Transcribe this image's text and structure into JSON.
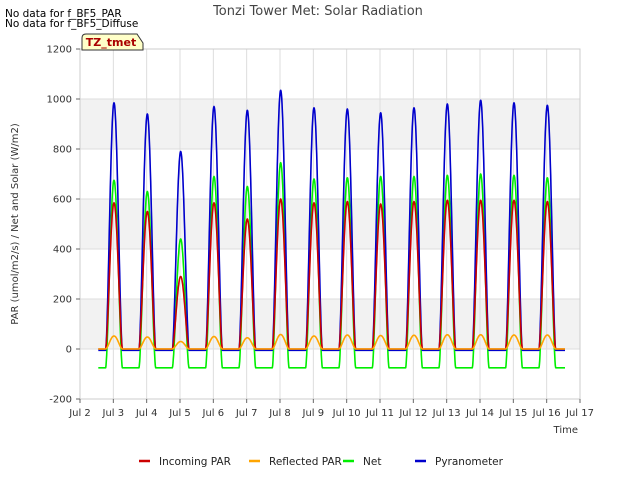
{
  "notes": [
    "No data for f_BF5_PAR",
    "No data for f_BF5_Diffuse"
  ],
  "chart_data": {
    "type": "line",
    "title": "Tonzi Tower Met: Solar Radiation",
    "xlabel": "Time",
    "ylabel": "PAR (umol/m2/s) / Net and Solar (W/m2)",
    "xlim": [
      2,
      17
    ],
    "ylim": [
      -200,
      1200
    ],
    "x_ticks": [
      2,
      3,
      4,
      5,
      6,
      7,
      8,
      9,
      10,
      11,
      12,
      13,
      14,
      15,
      16,
      17
    ],
    "x_tick_labels": [
      "Jul 2",
      "Jul 3",
      "Jul 4",
      "Jul 5",
      "Jul 6",
      "Jul 7",
      "Jul 8",
      "Jul 9",
      "Jul 10",
      "Jul 11",
      "Jul 12",
      "Jul 13",
      "Jul 14",
      "Jul 15",
      "Jul 16",
      "Jul 17"
    ],
    "y_ticks": [
      -200,
      0,
      200,
      400,
      600,
      800,
      1000,
      1200
    ],
    "y_tick_labels": [
      "-200",
      "0",
      "200",
      "400",
      "600",
      "800",
      "1000",
      "1200"
    ],
    "tag_label": "TZ_tmet",
    "legend_position": "bottom",
    "days": [
      3,
      4,
      5,
      6,
      7,
      8,
      9,
      10,
      11,
      12,
      13,
      14,
      15,
      16
    ],
    "series": [
      {
        "name": "Incoming PAR",
        "color": "#cc0000",
        "night": 0,
        "peaks": [
          585,
          550,
          290,
          585,
          520,
          600,
          585,
          590,
          580,
          590,
          595,
          595,
          595,
          590
        ]
      },
      {
        "name": "Reflected PAR",
        "color": "#ffa500",
        "night": 0,
        "peaks": [
          52,
          48,
          30,
          50,
          45,
          58,
          52,
          56,
          54,
          55,
          57,
          57,
          56,
          56
        ]
      },
      {
        "name": "Net",
        "color": "#00ee00",
        "night": -75,
        "peaks": [
          675,
          630,
          440,
          690,
          650,
          745,
          680,
          685,
          690,
          690,
          695,
          700,
          695,
          685
        ]
      },
      {
        "name": "Pyranometer",
        "color": "#0000cc",
        "night": -5,
        "peaks": [
          985,
          940,
          790,
          970,
          955,
          1035,
          965,
          960,
          945,
          965,
          980,
          995,
          985,
          975
        ]
      }
    ]
  }
}
